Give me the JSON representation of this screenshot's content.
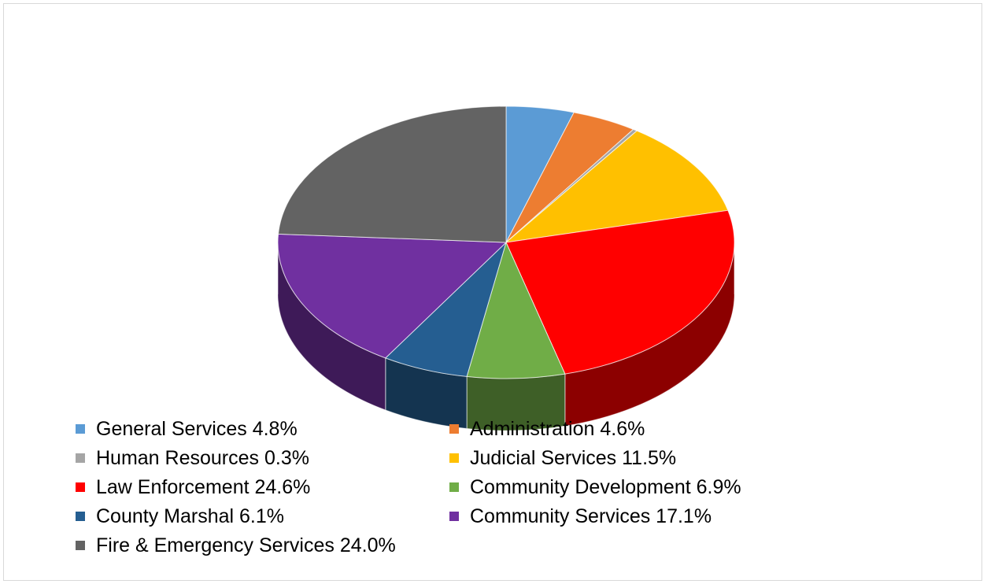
{
  "chart_data": {
    "type": "pie",
    "title": "",
    "style": "3d",
    "slices": [
      {
        "name": "General Services",
        "value": 4.8,
        "label": "General Services 4.8%",
        "color": "#5b9bd5"
      },
      {
        "name": "Administration",
        "value": 4.6,
        "label": "Administration 4.6%",
        "color": "#ed7d31"
      },
      {
        "name": "Human Resources",
        "value": 0.3,
        "label": "Human Resources 0.3%",
        "color": "#a5a5a5"
      },
      {
        "name": "Judicial Services",
        "value": 11.5,
        "label": "Judicial Services 11.5%",
        "color": "#ffc000"
      },
      {
        "name": "Law Enforcement",
        "value": 24.6,
        "label": "Law Enforcement 24.6%",
        "color": "#ff0000"
      },
      {
        "name": "Community Development",
        "value": 6.9,
        "label": "Community Development 6.9%",
        "color": "#70ad47"
      },
      {
        "name": "County Marshal",
        "value": 6.1,
        "label": "County Marshal 6.1%",
        "color": "#255e91"
      },
      {
        "name": "Community Services",
        "value": 17.1,
        "label": "Community Services 17.1%",
        "color": "#7030a0"
      },
      {
        "name": "Fire & Emergency Services",
        "value": 24.0,
        "label": "Fire & Emergency Services 24.0%",
        "color": "#636363"
      }
    ],
    "legend_position": "bottom"
  }
}
